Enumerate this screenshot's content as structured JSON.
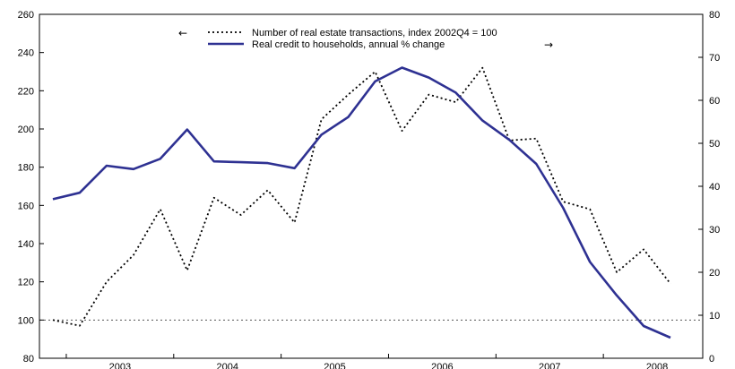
{
  "chart_data": {
    "type": "line",
    "x_labels": [
      "2003",
      "2004",
      "2005",
      "2006",
      "2007",
      "2008"
    ],
    "y_left": {
      "ylim": [
        80,
        260
      ],
      "ticks": [
        "80",
        "100",
        "120",
        "140",
        "160",
        "180",
        "200",
        "220",
        "240",
        "260"
      ]
    },
    "y_right": {
      "ylim": [
        0,
        80
      ],
      "ticks": [
        "0",
        "10",
        "20",
        "30",
        "40",
        "50",
        "60",
        "70",
        "80"
      ]
    },
    "reference_line_left": 100,
    "legend": [
      {
        "text": "Number of real estate transactions, index 2002Q4 = 100",
        "arrow": "←",
        "axis": "left"
      },
      {
        "text": "Real credit to households, annual % change",
        "arrow": "→",
        "axis": "right"
      }
    ],
    "series": [
      {
        "name": "Number of real estate transactions, index 2002Q4 = 100",
        "axis": "left",
        "style": "dotted",
        "color": "#000000",
        "values": [
          100,
          97,
          120,
          134,
          158,
          126,
          164,
          155,
          168,
          151,
          205,
          218,
          230,
          199,
          218,
          214,
          232,
          194,
          195,
          162,
          158,
          125,
          137,
          119
        ]
      },
      {
        "name": "Real credit to households, annual % change",
        "axis": "right",
        "style": "solid",
        "color": "#2e3192",
        "values": [
          37,
          38.5,
          44.8,
          44,
          46.4,
          53.2,
          45.8,
          45.6,
          45.4,
          44.2,
          52,
          56.1,
          64.4,
          67.6,
          65.3,
          61.8,
          55.3,
          50.8,
          45.2,
          35,
          22.4,
          14.6,
          7.5,
          4.8
        ]
      }
    ]
  }
}
